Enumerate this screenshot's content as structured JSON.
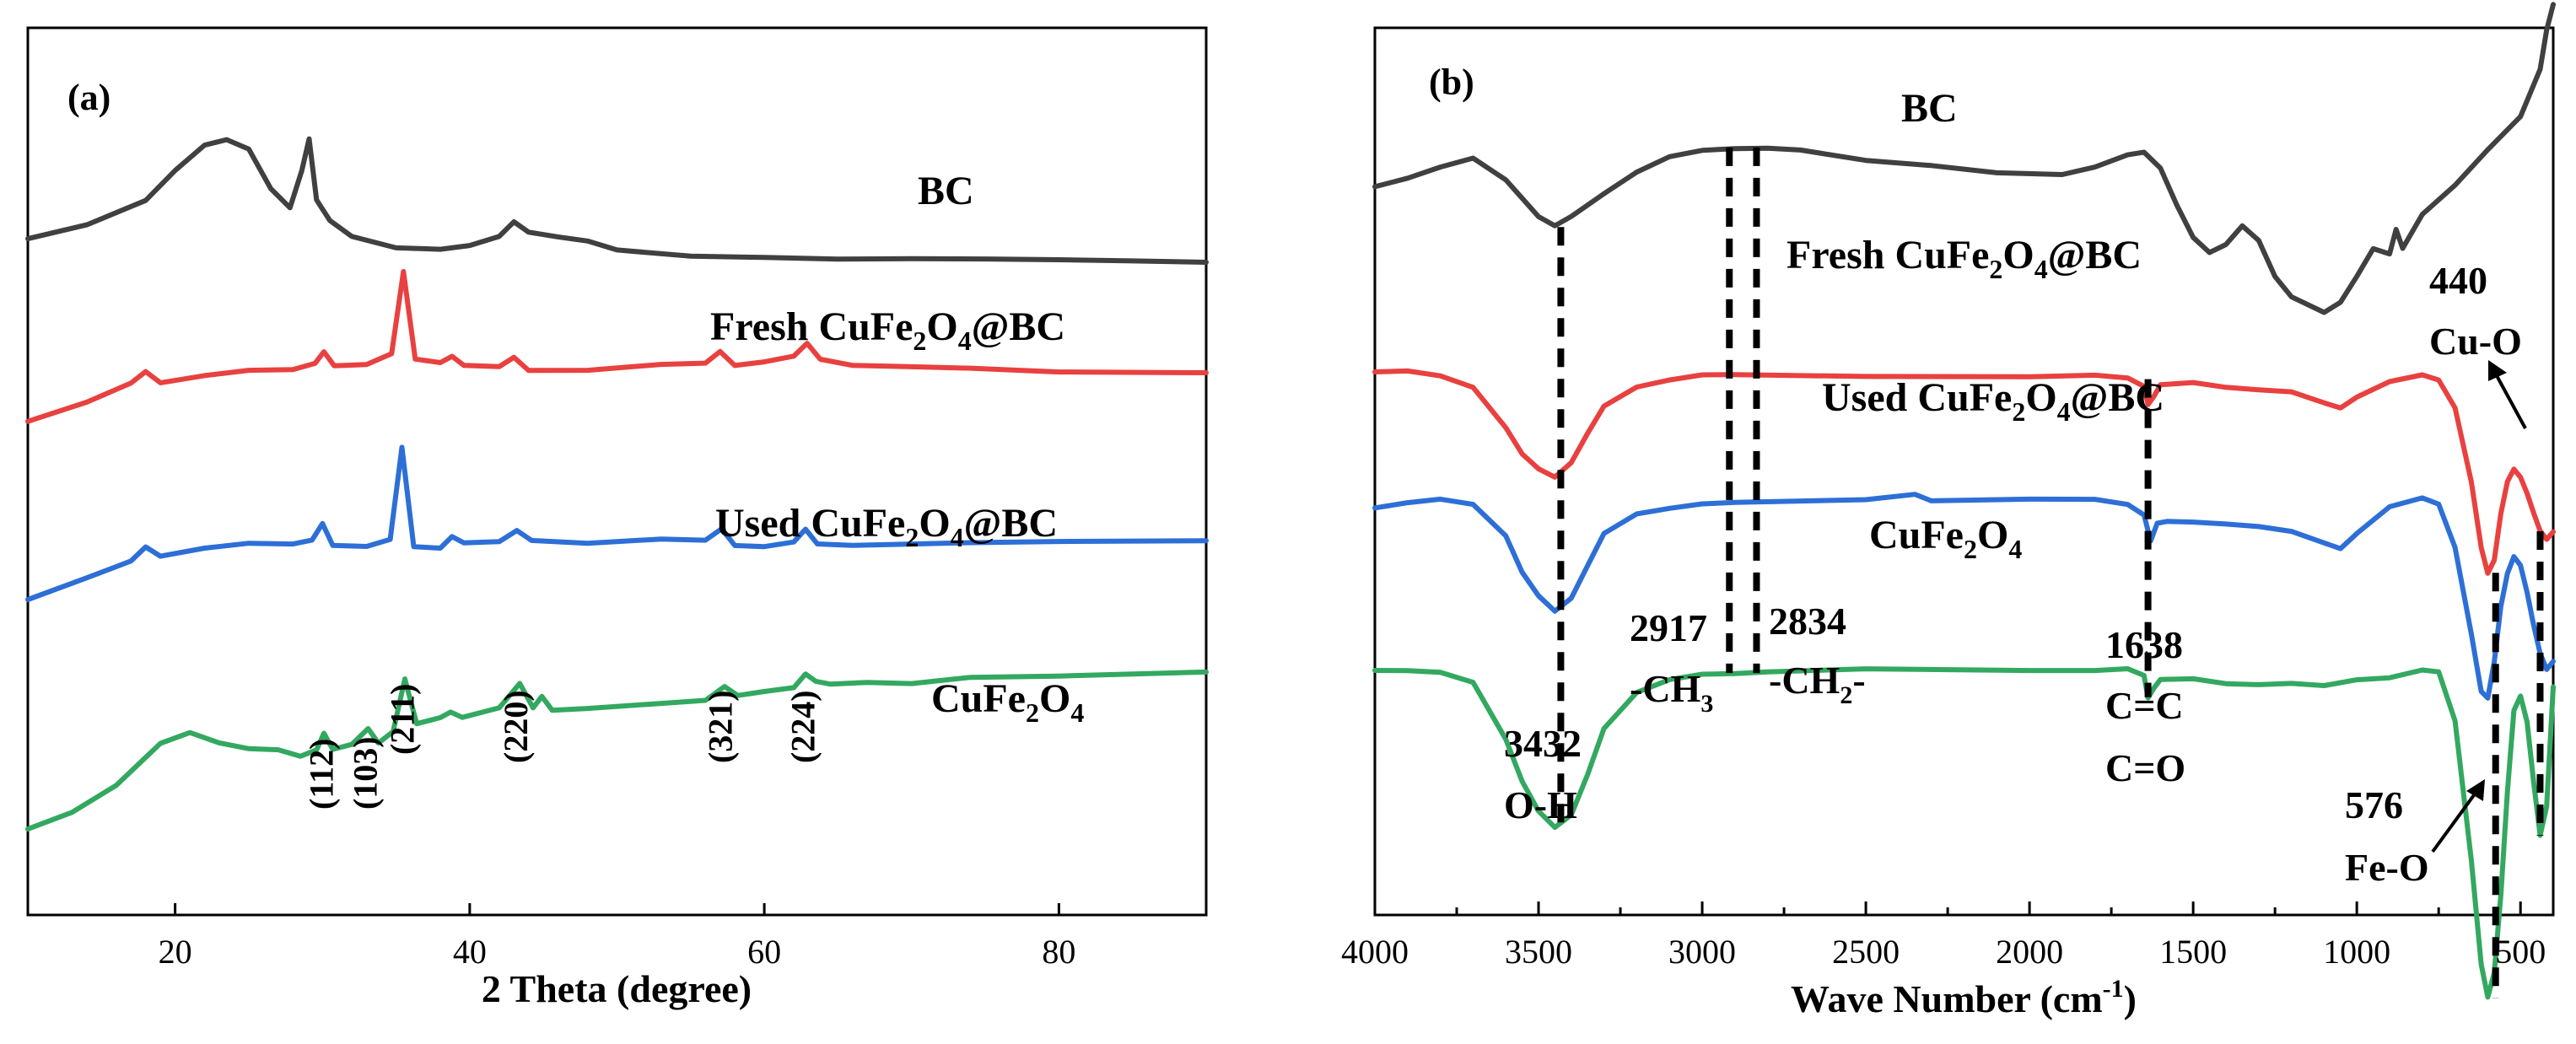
{
  "chart_data": [
    {
      "type": "line",
      "panel": "(a)",
      "xlabel": "2 Theta (degree)",
      "ylabel": "",
      "xlim": [
        10,
        90
      ],
      "xticks": [
        20,
        40,
        60,
        80
      ],
      "series": [
        {
          "name": "BC",
          "color": "#404040",
          "x": [
            10,
            14,
            18,
            20,
            22,
            23.5,
            25,
            26.5,
            27.8,
            28.6,
            29.1,
            29.6,
            30.5,
            32,
            35,
            38,
            40,
            42,
            43,
            44,
            46,
            48,
            50,
            55,
            60,
            65,
            70,
            75,
            80,
            85,
            90
          ],
          "y": [
            0.8,
            0.83,
            0.88,
            0.94,
            0.99,
            1.0,
            0.98,
            0.9,
            0.86,
            0.93,
            0.99,
            0.87,
            0.83,
            0.8,
            0.78,
            0.78,
            0.79,
            0.81,
            0.84,
            0.82,
            0.81,
            0.8,
            0.78,
            0.765,
            0.76,
            0.755,
            0.755,
            0.755,
            0.755,
            0.755,
            0.755
          ]
        },
        {
          "name": "Fresh CuFe2O4@BC",
          "color": "#e8413f",
          "x": [
            10,
            14,
            17,
            18,
            19,
            22,
            25,
            28,
            29.5,
            30.1,
            30.8,
            33,
            34.7,
            35.5,
            36.3,
            38,
            38.8,
            39.6,
            42,
            43,
            44,
            48,
            53,
            56,
            57,
            58,
            60,
            62,
            62.9,
            63.8,
            66,
            70,
            74,
            80,
            90
          ],
          "y": [
            0.44,
            0.48,
            0.52,
            0.545,
            0.525,
            0.54,
            0.55,
            0.55,
            0.56,
            0.58,
            0.55,
            0.55,
            0.57,
            0.73,
            0.56,
            0.555,
            0.57,
            0.555,
            0.555,
            0.575,
            0.55,
            0.55,
            0.56,
            0.56,
            0.58,
            0.55,
            0.555,
            0.565,
            0.59,
            0.56,
            0.55,
            0.55,
            0.55,
            0.545,
            0.545
          ]
        },
        {
          "name": "Used CuFe2O4@BC",
          "color": "#2d6fd6",
          "x": [
            10,
            14,
            17,
            18,
            19,
            22,
            25,
            28,
            29.3,
            30.0,
            30.7,
            33,
            34.6,
            35.4,
            36.2,
            38,
            38.8,
            39.6,
            42,
            43.2,
            44.2,
            48,
            53,
            56,
            57.1,
            58,
            60,
            62,
            62.8,
            63.6,
            66,
            70,
            74,
            80,
            90
          ],
          "y": [
            0.1,
            0.14,
            0.17,
            0.195,
            0.175,
            0.19,
            0.2,
            0.2,
            0.21,
            0.245,
            0.205,
            0.205,
            0.22,
            0.4,
            0.205,
            0.2,
            0.22,
            0.205,
            0.205,
            0.225,
            0.205,
            0.2,
            0.21,
            0.21,
            0.235,
            0.205,
            0.205,
            0.215,
            0.24,
            0.21,
            0.205,
            0.205,
            0.205,
            0.205,
            0.205
          ]
        },
        {
          "name": "CuFe2O4",
          "color": "#33a860",
          "x": [
            10,
            13,
            16,
            19,
            21,
            23,
            25,
            27,
            28.5,
            29.6,
            30.1,
            30.7,
            32,
            33.1,
            33.8,
            34.8,
            35.6,
            36.4,
            38,
            38.7,
            39.5,
            42,
            43.4,
            44.3,
            44.9,
            45.6,
            48,
            53,
            56,
            57.3,
            58.2,
            60,
            62,
            62.8,
            63.5,
            64.5,
            67,
            70,
            74,
            80,
            90
          ],
          "y": [
            -0.35,
            -0.32,
            -0.27,
            -0.19,
            -0.17,
            -0.19,
            -0.2,
            -0.2,
            -0.21,
            -0.195,
            -0.16,
            -0.19,
            -0.18,
            -0.15,
            -0.18,
            -0.16,
            -0.06,
            -0.15,
            -0.14,
            -0.13,
            -0.14,
            -0.12,
            -0.07,
            -0.115,
            -0.09,
            -0.115,
            -0.11,
            -0.1,
            -0.095,
            -0.07,
            -0.09,
            -0.085,
            -0.08,
            -0.055,
            -0.07,
            -0.075,
            -0.07,
            -0.07,
            -0.055,
            -0.05,
            -0.04
          ]
        }
      ],
      "annotations": {
        "hkl": [
          "(112)",
          "(103)",
          "(211)",
          "(220)",
          "(321)",
          "(224)"
        ],
        "hkl_x": [
          30.0,
          33.0,
          35.5,
          43.2,
          57.1,
          62.7
        ]
      }
    },
    {
      "type": "line",
      "panel": "(b)",
      "xlabel": "Wave Number (cm",
      "xlabel_sup": "-1",
      "xlabel_end": ")",
      "ylabel": "",
      "xlim": [
        4000,
        400
      ],
      "xticks": [
        4000,
        3500,
        3000,
        2500,
        2000,
        1500,
        1000,
        500
      ],
      "series": [
        {
          "name": "BC",
          "color": "#404040",
          "x": [
            4000,
            3900,
            3800,
            3700,
            3600,
            3500,
            3450,
            3400,
            3300,
            3200,
            3100,
            3000,
            2900,
            2800,
            2700,
            2500,
            2300,
            2100,
            1900,
            1800,
            1700,
            1650,
            1600,
            1550,
            1500,
            1450,
            1400,
            1350,
            1300,
            1250,
            1200,
            1100,
            1050,
            1000,
            950,
            900,
            880,
            860,
            800,
            700,
            600,
            500,
            440,
            420,
            400
          ],
          "y": [
            0.0,
            0.02,
            0.05,
            0.08,
            0.02,
            -0.09,
            -0.12,
            -0.09,
            -0.02,
            0.04,
            0.08,
            0.1,
            0.11,
            0.11,
            0.1,
            0.07,
            0.06,
            0.04,
            0.03,
            0.05,
            0.09,
            0.1,
            0.05,
            -0.06,
            -0.15,
            -0.19,
            -0.17,
            -0.12,
            -0.16,
            -0.26,
            -0.32,
            -0.37,
            -0.34,
            -0.26,
            -0.18,
            -0.2,
            -0.13,
            -0.18,
            -0.08,
            0.0,
            0.1,
            0.2,
            0.34,
            0.45,
            0.52
          ]
        },
        {
          "name": "Fresh CuFe2O4@BC",
          "color": "#e8413f",
          "x": [
            4000,
            3900,
            3800,
            3700,
            3600,
            3550,
            3500,
            3450,
            3400,
            3350,
            3300,
            3200,
            3100,
            3000,
            2900,
            2500,
            2000,
            1800,
            1700,
            1650,
            1638,
            1620,
            1600,
            1500,
            1400,
            1300,
            1200,
            1100,
            1050,
            1000,
            900,
            800,
            750,
            700,
            650,
            620,
            600,
            580,
            560,
            540,
            520,
            500,
            480,
            460,
            440,
            420,
            400
          ],
          "y": [
            -0.54,
            -0.54,
            -0.55,
            -0.58,
            -0.7,
            -0.78,
            -0.82,
            -0.84,
            -0.8,
            -0.72,
            -0.64,
            -0.58,
            -0.56,
            -0.55,
            -0.55,
            -0.55,
            -0.55,
            -0.55,
            -0.56,
            -0.58,
            -0.63,
            -0.61,
            -0.58,
            -0.57,
            -0.58,
            -0.59,
            -0.6,
            -0.63,
            -0.64,
            -0.61,
            -0.57,
            -0.55,
            -0.56,
            -0.64,
            -0.86,
            -1.05,
            -1.12,
            -1.08,
            -0.95,
            -0.86,
            -0.82,
            -0.84,
            -0.89,
            -0.95,
            -1.0,
            -1.02,
            -1.0
          ]
        },
        {
          "name": "Used CuFe2O4@BC",
          "color": "#2d6fd6",
          "x": [
            4000,
            3900,
            3800,
            3700,
            3600,
            3550,
            3500,
            3450,
            3400,
            3350,
            3300,
            3200,
            3100,
            3000,
            2900,
            2500,
            2350,
            2300,
            2000,
            1800,
            1700,
            1650,
            1630,
            1610,
            1580,
            1500,
            1400,
            1300,
            1200,
            1100,
            1050,
            1000,
            900,
            800,
            750,
            700,
            650,
            620,
            600,
            580,
            560,
            540,
            520,
            500,
            480,
            460,
            440,
            420,
            400
          ],
          "y": [
            -0.93,
            -0.92,
            -0.91,
            -0.92,
            -1.01,
            -1.12,
            -1.19,
            -1.23,
            -1.19,
            -1.1,
            -1.01,
            -0.95,
            -0.93,
            -0.92,
            -0.92,
            -0.91,
            -0.89,
            -0.91,
            -0.91,
            -0.91,
            -0.92,
            -0.95,
            -1.03,
            -0.98,
            -0.97,
            -0.97,
            -0.98,
            -0.99,
            -1.0,
            -1.03,
            -1.05,
            -1.01,
            -0.93,
            -0.9,
            -0.92,
            -1.05,
            -1.3,
            -1.46,
            -1.48,
            -1.38,
            -1.22,
            -1.12,
            -1.07,
            -1.1,
            -1.18,
            -1.27,
            -1.35,
            -1.4,
            -1.38
          ]
        },
        {
          "name": "CuFe2O4",
          "color": "#33a860",
          "x": [
            4000,
            3900,
            3800,
            3700,
            3600,
            3550,
            3500,
            3450,
            3400,
            3350,
            3300,
            3200,
            3100,
            3000,
            2900,
            2800,
            2500,
            2000,
            1800,
            1700,
            1650,
            1638,
            1620,
            1600,
            1500,
            1400,
            1300,
            1200,
            1100,
            1000,
            900,
            800,
            750,
            700,
            650,
            620,
            600,
            580,
            560,
            540,
            520,
            500,
            480,
            460,
            440,
            420,
            400
          ],
          "y": [
            -1.4,
            -1.4,
            -1.41,
            -1.44,
            -1.6,
            -1.72,
            -1.81,
            -1.86,
            -1.82,
            -1.7,
            -1.57,
            -1.47,
            -1.43,
            -1.41,
            -1.41,
            -1.41,
            -1.4,
            -1.4,
            -1.4,
            -1.4,
            -1.42,
            -1.48,
            -1.45,
            -1.43,
            -1.43,
            -1.44,
            -1.44,
            -1.44,
            -1.45,
            -1.43,
            -1.42,
            -1.4,
            -1.41,
            -1.55,
            -1.95,
            -2.25,
            -2.35,
            -2.28,
            -2.05,
            -1.75,
            -1.52,
            -1.48,
            -1.55,
            -1.72,
            -1.88,
            -1.8,
            -1.45
          ]
        }
      ],
      "markers": [
        {
          "x": 3432,
          "from": -0.12,
          "to": -1.86
        },
        {
          "x": 2917,
          "from": 0.11,
          "to": -1.41
        },
        {
          "x": 2834,
          "from": 0.11,
          "to": -1.41
        },
        {
          "x": 1638,
          "from": -0.56,
          "to": -1.48
        },
        {
          "x": 576,
          "from": -1.12,
          "to": -2.35
        },
        {
          "x": 440,
          "from": -1.0,
          "to": -1.88
        }
      ]
    }
  ],
  "labels": {
    "panel_a": "(a)",
    "panel_b": "(b)",
    "bc": "BC",
    "fresh_pre": "Fresh CuFe",
    "used_pre": "Used CuFe",
    "cufe_pre": "CuFe",
    "sub_2": "2",
    "o": "O",
    "sub_4": "4",
    "at_bc": "@BC",
    "b_3432": "3432",
    "b_oh": "O-H",
    "b_2917": "2917",
    "b_ch3_pre": "-CH",
    "b_ch3_sub": "3",
    "b_2834": "2834",
    "b_ch2_pre": "-CH",
    "b_ch2_sub": "2",
    "b_ch2_post": "-",
    "b_1638": "1638",
    "b_cc": "C=C",
    "b_co": "C=O",
    "b_440": "440",
    "b_cuo": "Cu-O",
    "b_576": "576",
    "b_feo": "Fe-O"
  }
}
